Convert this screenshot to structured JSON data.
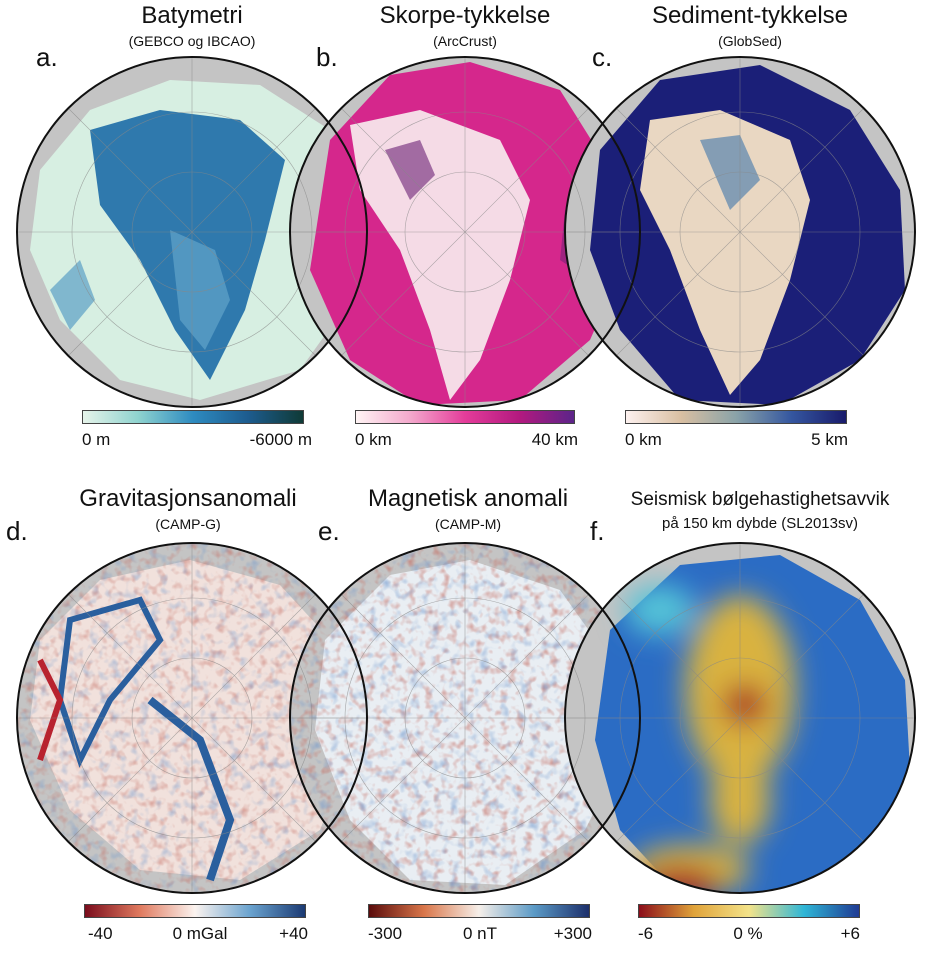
{
  "panels": [
    {
      "letter": "a.",
      "title": "Batymetri",
      "subtitle": "(GEBCO og IBCAO)",
      "colorbar": {
        "labels": [
          "0 m",
          "-6000 m"
        ],
        "colors": [
          "#e6f4ea",
          "#8fd3cf",
          "#2e8bc0",
          "#1d5c8f",
          "#0f3a36"
        ]
      }
    },
    {
      "letter": "b.",
      "title": "Skorpe-tykkelse",
      "subtitle": "(ArcCrust)",
      "colorbar": {
        "labels": [
          "0 km",
          "40 km"
        ],
        "colors": [
          "#fff4f4",
          "#f3a8cc",
          "#e43c9a",
          "#b3197f",
          "#5b2489"
        ]
      }
    },
    {
      "letter": "c.",
      "title": "Sediment-tykkelse",
      "subtitle": "(GlobSed)",
      "colorbar": {
        "labels": [
          "0 km",
          "5 km"
        ],
        "colors": [
          "#fdf1ef",
          "#d9bfa2",
          "#8aa3a8",
          "#3557a0",
          "#191b6b"
        ]
      }
    },
    {
      "letter": "d.",
      "title": "Gravitasjonsanomali",
      "subtitle": "(CAMP-G)",
      "colorbar": {
        "labels": [
          "-40",
          "0 mGal",
          "+40"
        ],
        "colors": [
          "#7a0c1c",
          "#e07a5f",
          "#fbf3ef",
          "#6aa3cf",
          "#1b3a73"
        ]
      }
    },
    {
      "letter": "e.",
      "title": "Magnetisk anomali",
      "subtitle": "(CAMP-M)",
      "colorbar": {
        "labels": [
          "-300",
          "0 nT",
          "+300"
        ],
        "colors": [
          "#5a0b0b",
          "#d9764a",
          "#f6efe9",
          "#5b9ac6",
          "#1c2f6b"
        ]
      }
    },
    {
      "letter": "f.",
      "title": "Seismisk bølgehastighetsavvik",
      "subtitle": "på 150 km dybde (SL2013sv)",
      "colorbar": {
        "labels": [
          "-6",
          "0 %",
          "+6"
        ],
        "colors": [
          "#8b0d1a",
          "#e0a33a",
          "#f3e38a",
          "#2fb6d6",
          "#1f3a93"
        ]
      }
    }
  ],
  "map_colors": {
    "land": "#c4c4c4",
    "a": {
      "shelf": "#d7efe2",
      "deep": "#2f79ad",
      "mid": "#5b9fc6"
    },
    "b": {
      "base": "#d5278c",
      "light": "#f5dbe6",
      "dark": "#6a1f74"
    },
    "c": {
      "base": "#1b1f78",
      "light": "#e9d7c2",
      "mid": "#6a8fb0"
    },
    "d": {
      "base": "#f1e1dc",
      "red": "#b8232f",
      "blue": "#2a5f9e"
    },
    "e": {
      "base": "#e9eef3",
      "red": "#8c1f1a",
      "blue": "#3e7ab5"
    },
    "f": {
      "base": "#2b6cc4",
      "yellow": "#d9b240",
      "red": "#a81c24",
      "cyan": "#55c4d8"
    }
  }
}
